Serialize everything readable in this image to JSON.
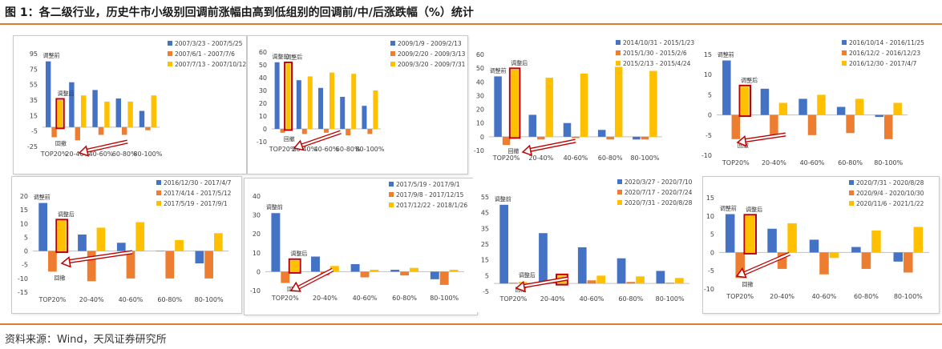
{
  "figure": {
    "title": "图 1：各二级行业，历史牛市小级别回调前涨幅由高到低组别的回调前/中/后涨跌幅（%）统计",
    "source": "资料来源：Wind，天风证券研究所"
  },
  "colors": {
    "series": [
      "#4472c4",
      "#ed7d31",
      "#ffc000"
    ],
    "highlight": "#c00000",
    "rule": "#e07a2e"
  },
  "chart_data": [
    {
      "type": "bar",
      "categories": [
        "TOP20%",
        "20-40%",
        "40-60%",
        "60-80%",
        "80-100%"
      ],
      "yticks": [
        95,
        75,
        55,
        35,
        15,
        -5,
        -25
      ],
      "ylim": [
        -25,
        95
      ],
      "series": [
        {
          "name": "2007/3/23 - 2007/5/25",
          "values": [
            85,
            58,
            48,
            37,
            21
          ]
        },
        {
          "name": "2007/6/1 - 2007/7/6",
          "values": [
            -13,
            -17,
            -10,
            -10,
            -4
          ]
        },
        {
          "name": "2007/7/13 - 2007/10/12",
          "values": [
            35,
            41,
            33,
            33,
            41
          ]
        }
      ],
      "annotations": {
        "before": "调整前",
        "after": "调整后",
        "pullback": "回撤"
      }
    },
    {
      "type": "bar",
      "categories": [
        "TOP20%",
        "20-40%",
        "40-60%",
        "60-80%",
        "80-100%"
      ],
      "yticks": [
        60,
        50,
        40,
        30,
        20,
        10,
        0,
        -10
      ],
      "ylim": [
        -10,
        60
      ],
      "series": [
        {
          "name": "2009/1/9 - 2009/2/13",
          "values": [
            52,
            38,
            32,
            25,
            18
          ]
        },
        {
          "name": "2009/2/20 - 2009/3/13",
          "values": [
            -3,
            -4,
            -3,
            -5,
            -4
          ]
        },
        {
          "name": "2009/3/20 - 2009/7/31",
          "values": [
            51,
            41,
            44,
            43,
            30
          ]
        }
      ],
      "annotations": {
        "before": "调整前",
        "after": "调整后",
        "pullback": "回撤"
      }
    },
    {
      "type": "bar",
      "categories": [
        "TOP20%",
        "20-40%",
        "40-60%",
        "60-80%",
        "80-100%"
      ],
      "yticks": [
        60,
        50,
        40,
        30,
        20,
        10,
        0,
        -10
      ],
      "ylim": [
        -10,
        60
      ],
      "series": [
        {
          "name": "2014/10/31 - 2015/1/23",
          "values": [
            44,
            16,
            10,
            5,
            -2
          ]
        },
        {
          "name": "2015/1/30 - 2015/2/6",
          "values": [
            -6,
            -2,
            -1,
            -2,
            -2
          ]
        },
        {
          "name": "2015/2/13 - 2015/4/24",
          "values": [
            49,
            43,
            46,
            51,
            48
          ]
        }
      ],
      "annotations": {
        "before": "调整前",
        "after": "调整后",
        "pullback": "回撤"
      }
    },
    {
      "type": "bar",
      "categories": [
        "TOP20%",
        "20-40%",
        "40-60%",
        "60-80%",
        "80-100%"
      ],
      "yticks": [
        15,
        10,
        5,
        0,
        -5,
        -10
      ],
      "ylim": [
        -10,
        15
      ],
      "series": [
        {
          "name": "2016/10/14 - 2016/11/25",
          "values": [
            13.5,
            6.5,
            4,
            2,
            -0.5
          ]
        },
        {
          "name": "2016/12/2 - 2016/12/23",
          "values": [
            -6,
            -5,
            -5,
            -4.5,
            -6
          ]
        },
        {
          "name": "2016/12/30 - 2017/4/7",
          "values": [
            7,
            3,
            5,
            4,
            3
          ]
        }
      ],
      "annotations": {
        "before": "调整前",
        "after": "调整后",
        "pullback": "回撤"
      }
    },
    {
      "type": "bar",
      "categories": [
        "TOP20%",
        "20-40%",
        "40-60%",
        "60-80%",
        "80-100%"
      ],
      "yticks": [
        20,
        15,
        10,
        5,
        0,
        -5,
        -10,
        -15
      ],
      "ylim": [
        -15,
        20
      ],
      "series": [
        {
          "name": "2016/12/30 - 2017/4/7",
          "values": [
            17.5,
            6,
            3,
            0,
            -4.5
          ]
        },
        {
          "name": "2017/4/14 - 2017/5/12",
          "values": [
            -7.5,
            -11,
            -10,
            -10,
            -10
          ]
        },
        {
          "name": "2017/5/19 - 2017/9/1",
          "values": [
            11,
            8.5,
            10.5,
            4,
            6.5
          ]
        }
      ],
      "annotations": {
        "before": "调整前",
        "after": "调整后",
        "pullback": "回撤"
      }
    },
    {
      "type": "bar",
      "categories": [
        "TOP20%",
        "20-40%",
        "40-60%",
        "60-80%",
        "80-100%"
      ],
      "yticks": [
        40,
        30,
        20,
        10,
        0,
        -10
      ],
      "ylim": [
        -10,
        40
      ],
      "series": [
        {
          "name": "2017/5/19 - 2017/9/1",
          "values": [
            31,
            8,
            4,
            1,
            -4
          ]
        },
        {
          "name": "2017/9/8 - 2017/12/15",
          "values": [
            -6,
            -2,
            -3,
            -2,
            -7
          ]
        },
        {
          "name": "2017/12/22 - 2018/1/26",
          "values": [
            6,
            3,
            1,
            2,
            1
          ]
        }
      ],
      "annotations": {
        "before": "调整前",
        "after": "调整后",
        "pullback": "回撤"
      }
    },
    {
      "type": "bar",
      "categories": [
        "TOP20%",
        "20-40%",
        "40-60%",
        "60-80%",
        "80-100%"
      ],
      "yticks": [
        55,
        45,
        35,
        25,
        15,
        5,
        -5
      ],
      "ylim": [
        -5,
        55
      ],
      "series": [
        {
          "name": "2020/3/27 - 2020/7/10",
          "values": [
            50,
            32,
            23,
            16,
            8
          ]
        },
        {
          "name": "2020/7/17 - 2020/7/24",
          "values": [
            0.5,
            2.5,
            2,
            1,
            0.5
          ]
        },
        {
          "name": "2020/7/31 - 2020/8/28",
          "values": [
            1,
            5,
            5,
            4.5,
            3.5
          ]
        }
      ],
      "annotations": {
        "before": "调整前",
        "after": "调整后",
        "pullback": "回撤"
      }
    },
    {
      "type": "bar",
      "categories": [
        "TOP20%",
        "20-40%",
        "40-60%",
        "60-80%",
        "80-100%"
      ],
      "yticks": [
        15,
        10,
        5,
        0,
        -5,
        -10
      ],
      "ylim": [
        -10,
        15
      ],
      "series": [
        {
          "name": "2020/7/31 - 2020/8/28",
          "values": [
            10.5,
            6.5,
            3.5,
            1.5,
            -2.5
          ]
        },
        {
          "name": "2020/9/4 - 2020/10/30",
          "values": [
            -7,
            -4.5,
            -6,
            -4.5,
            -5.5
          ]
        },
        {
          "name": "2020/11/6 - 2021/1/22",
          "values": [
            10,
            8,
            -1.5,
            6,
            7
          ]
        }
      ],
      "annotations": {
        "before": "调整前",
        "after": "调整后",
        "pullback": "回撤"
      }
    }
  ]
}
